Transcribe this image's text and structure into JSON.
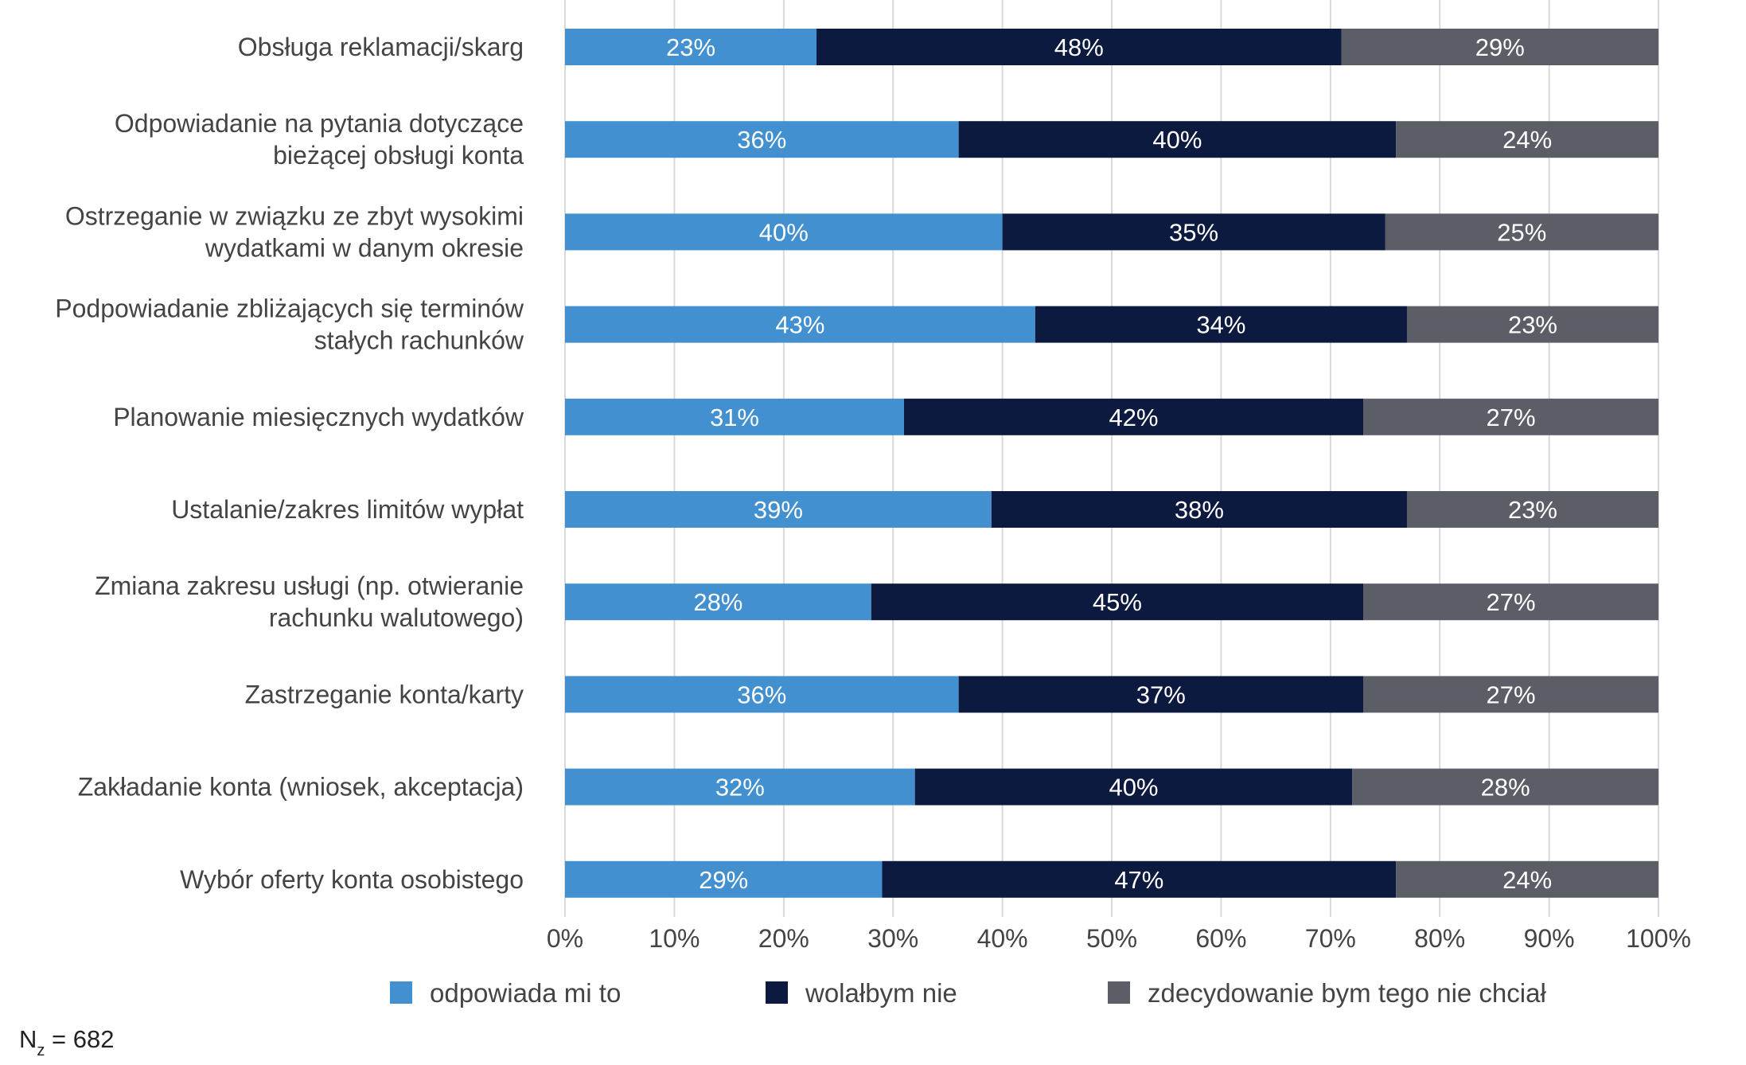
{
  "chart_data": {
    "type": "bar",
    "orientation": "horizontal",
    "stacked": true,
    "percent_scale": true,
    "categories": [
      [
        "Obsługa reklamacji/skarg"
      ],
      [
        "Odpowiadanie na pytania dotyczące",
        "bieżącej obsługi konta"
      ],
      [
        "Ostrzeganie w związku ze zbyt wysokimi",
        "wydatkami w danym okresie"
      ],
      [
        "Podpowiadanie zbliżających się terminów",
        "stałych rachunków"
      ],
      [
        "Planowanie miesięcznych wydatków"
      ],
      [
        "Ustalanie/zakres limitów wypłat"
      ],
      [
        "Zmiana zakresu usługi (np. otwieranie",
        "rachunku walutowego)"
      ],
      [
        "Zastrzeganie konta/karty"
      ],
      [
        "Zakładanie konta (wniosek, akceptacja)"
      ],
      [
        "Wybór oferty konta osobistego"
      ]
    ],
    "series": [
      {
        "name": "odpowiada mi to",
        "color": "#4290cf",
        "values": [
          23,
          36,
          40,
          43,
          31,
          39,
          28,
          36,
          32,
          29
        ],
        "labels": [
          "23%",
          "36%",
          "40%",
          "43%",
          "31%",
          "39%",
          "28%",
          "36%",
          "32%",
          "29%"
        ]
      },
      {
        "name": "wolałbym nie",
        "color": "#0d1a3f",
        "values": [
          48,
          40,
          35,
          34,
          42,
          38,
          45,
          37,
          40,
          47
        ],
        "labels": [
          "48%",
          "40%",
          "35%",
          "34%",
          "42%",
          "38%",
          "45%",
          "37%",
          "40%",
          "47%"
        ]
      },
      {
        "name": "zdecydowanie bym tego nie chciał",
        "color": "#5b5e66",
        "values": [
          29,
          24,
          25,
          23,
          27,
          23,
          27,
          27,
          28,
          24
        ],
        "labels": [
          "29%",
          "24%",
          "25%",
          "23%",
          "27%",
          "23%",
          "27%",
          "27%",
          "28%",
          "24%"
        ]
      }
    ],
    "x_ticks": [
      "0%",
      "10%",
      "20%",
      "30%",
      "40%",
      "50%",
      "60%",
      "70%",
      "80%",
      "90%",
      "100%"
    ],
    "xlim": [
      0,
      100
    ],
    "grid": "vertical",
    "legend_position": "bottom",
    "footnote": {
      "prefix": "N",
      "subscript": "z",
      "suffix": " = 682"
    }
  }
}
